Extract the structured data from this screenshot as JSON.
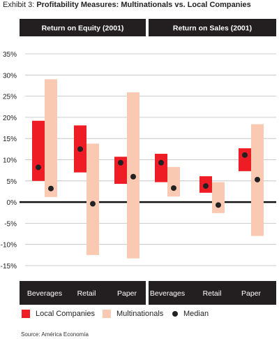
{
  "header": {
    "prefix": "Exhibit 3:",
    "title": "Profitability Measures: Multinationals vs. Local Companies"
  },
  "legend": {
    "local": "Local Companies",
    "multi": "Multinationals",
    "median": "Median"
  },
  "source": "Source: América Economía",
  "colors": {
    "local": "#ee1c25",
    "multi": "#f9c9b2",
    "median": "#222222",
    "panel_header": "#231f20"
  },
  "chart_data": [
    {
      "type": "bar",
      "title": "Return on Equity (2001)",
      "categories": [
        "Beverages",
        "Retail",
        "Paper"
      ],
      "ylim": [
        -15,
        35
      ],
      "yticks": [
        "35%",
        "30%",
        "25%",
        "20%",
        "15%",
        "10%",
        "5%",
        "0%",
        "-5%",
        "-10%",
        "-15%"
      ],
      "series": [
        {
          "name": "Local Companies",
          "ranges": [
            [
              5,
              19.2
            ],
            [
              7,
              18.1
            ],
            [
              4.3,
              10.7
            ]
          ],
          "medians": [
            8.2,
            12.5,
            9.3
          ]
        },
        {
          "name": "Multinationals",
          "ranges": [
            [
              1.2,
              29
            ],
            [
              -12.5,
              13.8
            ],
            [
              -13.3,
              25.9
            ]
          ],
          "medians": [
            3.2,
            -0.4,
            6
          ]
        }
      ]
    },
    {
      "type": "bar",
      "title": "Return on Sales (2001)",
      "categories": [
        "Beverages",
        "Retail",
        "Paper"
      ],
      "ylim": [
        -15,
        35
      ],
      "series": [
        {
          "name": "Local Companies",
          "ranges": [
            [
              4.7,
              11.4
            ],
            [
              2.2,
              6.1
            ],
            [
              7.3,
              12.7
            ]
          ],
          "medians": [
            9.3,
            3.8,
            11.1
          ]
        },
        {
          "name": "Multinationals",
          "ranges": [
            [
              1.3,
              8.3
            ],
            [
              -2.6,
              4.7
            ],
            [
              -8,
              18.4
            ]
          ],
          "medians": [
            3.3,
            -0.7,
            5.3
          ]
        }
      ]
    }
  ]
}
